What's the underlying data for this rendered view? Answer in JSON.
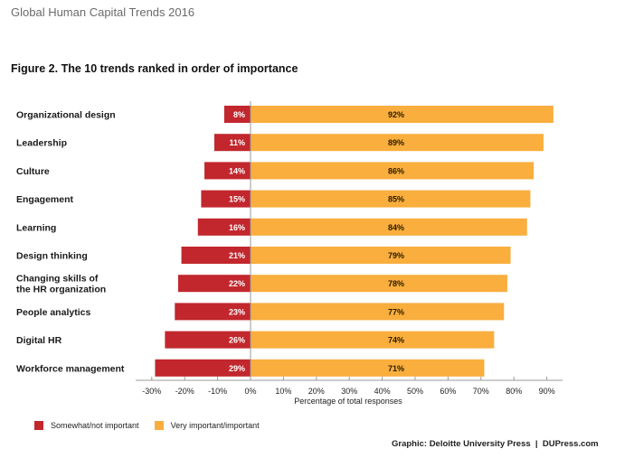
{
  "header": {
    "title": "Global Human Capital Trends 2016"
  },
  "figure": {
    "title": "Figure 2. The 10 trends ranked in order of importance"
  },
  "colors": {
    "negative": "#C1272D",
    "positive": "#F9AE3D"
  },
  "legend": [
    {
      "label": "Somewhat/not important",
      "series": "negative"
    },
    {
      "label": "Very important/important",
      "series": "positive"
    }
  ],
  "credit": "Graphic: Deloitte University Press  |  DUPress.com",
  "chart_data": {
    "type": "bar",
    "orientation": "horizontal-diverging",
    "title": "Figure 2. The 10 trends ranked in order of importance",
    "xlabel": "Percentage of total responses",
    "ylabel": "",
    "xlim": [
      -30,
      95
    ],
    "x_ticks": [
      -30,
      -20,
      -10,
      0,
      10,
      20,
      30,
      40,
      50,
      60,
      70,
      80,
      90
    ],
    "x_tick_labels": [
      "-30%",
      "-20%",
      "-10%",
      "0%",
      "10%",
      "20%",
      "30%",
      "40%",
      "50%",
      "60%",
      "70%",
      "80%",
      "90%"
    ],
    "grid": false,
    "legend_position": "bottom-left",
    "categories": [
      [
        "Organizational design"
      ],
      [
        "Leadership"
      ],
      [
        "Culture"
      ],
      [
        "Engagement"
      ],
      [
        "Learning"
      ],
      [
        "Design thinking"
      ],
      [
        "Changing skills of",
        "the HR organization"
      ],
      [
        "People analytics"
      ],
      [
        "Digital HR"
      ],
      [
        "Workforce management"
      ]
    ],
    "series": [
      {
        "name": "Somewhat/not important",
        "key": "negative",
        "values": [
          8,
          11,
          14,
          15,
          16,
          21,
          22,
          23,
          26,
          29
        ]
      },
      {
        "name": "Very important/important",
        "key": "positive",
        "values": [
          92,
          89,
          86,
          85,
          84,
          79,
          78,
          77,
          74,
          71
        ]
      }
    ]
  }
}
